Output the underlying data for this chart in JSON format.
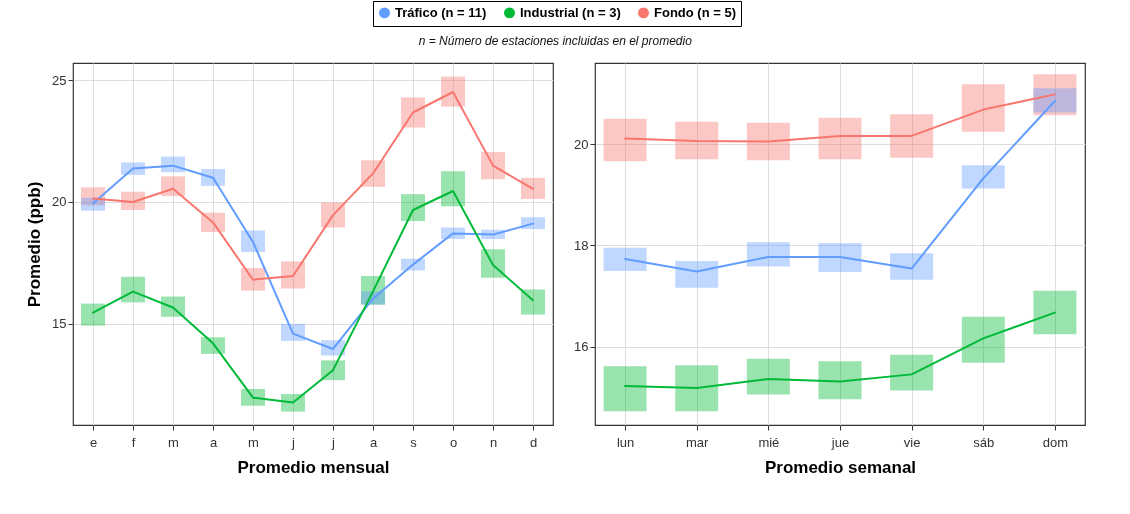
{
  "chart_data": [
    {
      "type": "line",
      "subtitle": "n = Número de estaciones incluidas en el promedio",
      "xlabel": "Promedio mensual",
      "ylabel": "Promedio (ppb)",
      "categories": [
        "e",
        "f",
        "m",
        "a",
        "m",
        "j",
        "j",
        "a",
        "s",
        "o",
        "n",
        "d"
      ],
      "ylim": [
        10.85,
        25.7
      ],
      "yticks": [
        15,
        20,
        25
      ],
      "grid": true,
      "legend": "top",
      "series": [
        {
          "name": "Tráfico (n = 11)",
          "color": "#619cff",
          "values": [
            19.94,
            21.37,
            21.49,
            20.99,
            18.36,
            14.6,
            13.97,
            16.03,
            17.43,
            18.71,
            18.66,
            19.11
          ],
          "errors": [
            [
              19.64,
              20.17
            ],
            [
              21.11,
              21.62
            ],
            [
              21.22,
              21.86
            ],
            [
              20.66,
              21.35
            ],
            [
              17.95,
              18.83
            ],
            [
              14.3,
              15.0
            ],
            [
              13.7,
              14.33
            ],
            [
              15.79,
              16.33
            ],
            [
              17.19,
              17.67
            ],
            [
              18.48,
              18.95
            ],
            [
              18.48,
              18.86
            ],
            [
              18.89,
              19.37
            ]
          ]
        },
        {
          "name": "Industrial (n = 3)",
          "color": "#00ba38",
          "values": [
            15.46,
            16.32,
            15.67,
            14.2,
            11.97,
            11.77,
            13.1,
            16.33,
            19.67,
            20.45,
            17.41,
            15.97
          ],
          "errors": [
            [
              14.93,
              15.83
            ],
            [
              15.88,
              16.93
            ],
            [
              15.29,
              16.12
            ],
            [
              13.77,
              14.45
            ],
            [
              11.64,
              12.33
            ],
            [
              11.4,
              12.12
            ],
            [
              12.69,
              13.5
            ],
            [
              15.79,
              16.96
            ],
            [
              19.22,
              20.32
            ],
            [
              19.82,
              21.26
            ],
            [
              16.89,
              18.06
            ],
            [
              15.38,
              16.41
            ]
          ]
        },
        {
          "name": "Fondo (n = 5)",
          "color": "#f8766d",
          "values": [
            20.14,
            20.0,
            20.54,
            19.16,
            16.81,
            16.96,
            19.46,
            21.17,
            23.67,
            24.51,
            21.49,
            20.54
          ],
          "errors": [
            [
              19.86,
              20.6
            ],
            [
              19.67,
              20.42
            ],
            [
              20.24,
              21.05
            ],
            [
              18.77,
              19.56
            ],
            [
              16.36,
              17.29
            ],
            [
              16.45,
              17.56
            ],
            [
              18.95,
              19.98
            ],
            [
              20.62,
              21.71
            ],
            [
              23.05,
              24.29
            ],
            [
              23.91,
              25.14
            ],
            [
              20.93,
              22.05
            ],
            [
              20.12,
              20.99
            ]
          ]
        }
      ]
    },
    {
      "type": "line",
      "xlabel": "Promedio semanal",
      "categories": [
        "lun",
        "mar",
        "mié",
        "jue",
        "vie",
        "sáb",
        "dom"
      ],
      "ylim": [
        14.45,
        21.6
      ],
      "yticks": [
        16,
        18,
        20
      ],
      "grid": true,
      "series": [
        {
          "name": "Tráfico (n = 11)",
          "color": "#619cff",
          "values": [
            17.73,
            17.48,
            17.77,
            17.77,
            17.54,
            19.32,
            20.85
          ],
          "errors": [
            [
              17.49,
              17.95
            ],
            [
              17.16,
              17.69
            ],
            [
              17.58,
              18.06
            ],
            [
              17.47,
              18.04
            ],
            [
              17.32,
              17.84
            ],
            [
              19.12,
              19.58
            ],
            [
              20.62,
              21.1
            ]
          ]
        },
        {
          "name": "Industrial (n = 3)",
          "color": "#00ba38",
          "values": [
            15.22,
            15.18,
            15.36,
            15.31,
            15.45,
            16.16,
            16.67
          ],
          "errors": [
            [
              14.72,
              15.61
            ],
            [
              14.72,
              15.63
            ],
            [
              15.05,
              15.76
            ],
            [
              14.96,
              15.71
            ],
            [
              15.13,
              15.84
            ],
            [
              15.68,
              16.59
            ],
            [
              16.24,
              17.1
            ]
          ]
        },
        {
          "name": "Fondo (n = 5)",
          "color": "#f8766d",
          "values": [
            20.11,
            20.06,
            20.05,
            20.16,
            20.16,
            20.68,
            20.98
          ],
          "errors": [
            [
              19.66,
              20.5
            ],
            [
              19.7,
              20.44
            ],
            [
              19.68,
              20.42
            ],
            [
              19.7,
              20.52
            ],
            [
              19.73,
              20.59
            ],
            [
              20.24,
              21.18
            ],
            [
              20.57,
              21.38
            ]
          ]
        }
      ]
    }
  ]
}
